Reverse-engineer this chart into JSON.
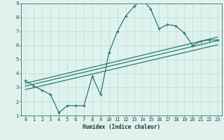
{
  "xlabel": "Humidex (Indice chaleur)",
  "bg_color": "#dff2ee",
  "grid_color": "#b8ddd6",
  "line_color": "#2a7a6a",
  "xlim": [
    -0.5,
    23.5
  ],
  "ylim": [
    1,
    9
  ],
  "xticks": [
    0,
    1,
    2,
    3,
    4,
    5,
    6,
    7,
    8,
    9,
    10,
    11,
    12,
    13,
    14,
    15,
    16,
    17,
    18,
    19,
    20,
    21,
    22,
    23
  ],
  "yticks": [
    1,
    2,
    3,
    4,
    5,
    6,
    7,
    8,
    9
  ],
  "curve_x": [
    0,
    1,
    2,
    3,
    4,
    5,
    6,
    7,
    8,
    9,
    10,
    11,
    12,
    13,
    14,
    15,
    16,
    17,
    18,
    19,
    20,
    21,
    22,
    23
  ],
  "curve_y": [
    3.5,
    3.1,
    2.8,
    2.5,
    1.2,
    1.7,
    1.7,
    1.7,
    3.8,
    2.5,
    5.5,
    7.0,
    8.1,
    8.8,
    9.3,
    8.6,
    7.2,
    7.5,
    7.4,
    6.9,
    6.0,
    6.3,
    6.4,
    6.4
  ],
  "trend1_x": [
    0,
    23
  ],
  "trend1_y": [
    3.3,
    6.6
  ],
  "trend2_x": [
    0,
    23
  ],
  "trend2_y": [
    3.1,
    6.35
  ],
  "trend3_x": [
    0,
    23
  ],
  "trend3_y": [
    2.85,
    6.05
  ]
}
